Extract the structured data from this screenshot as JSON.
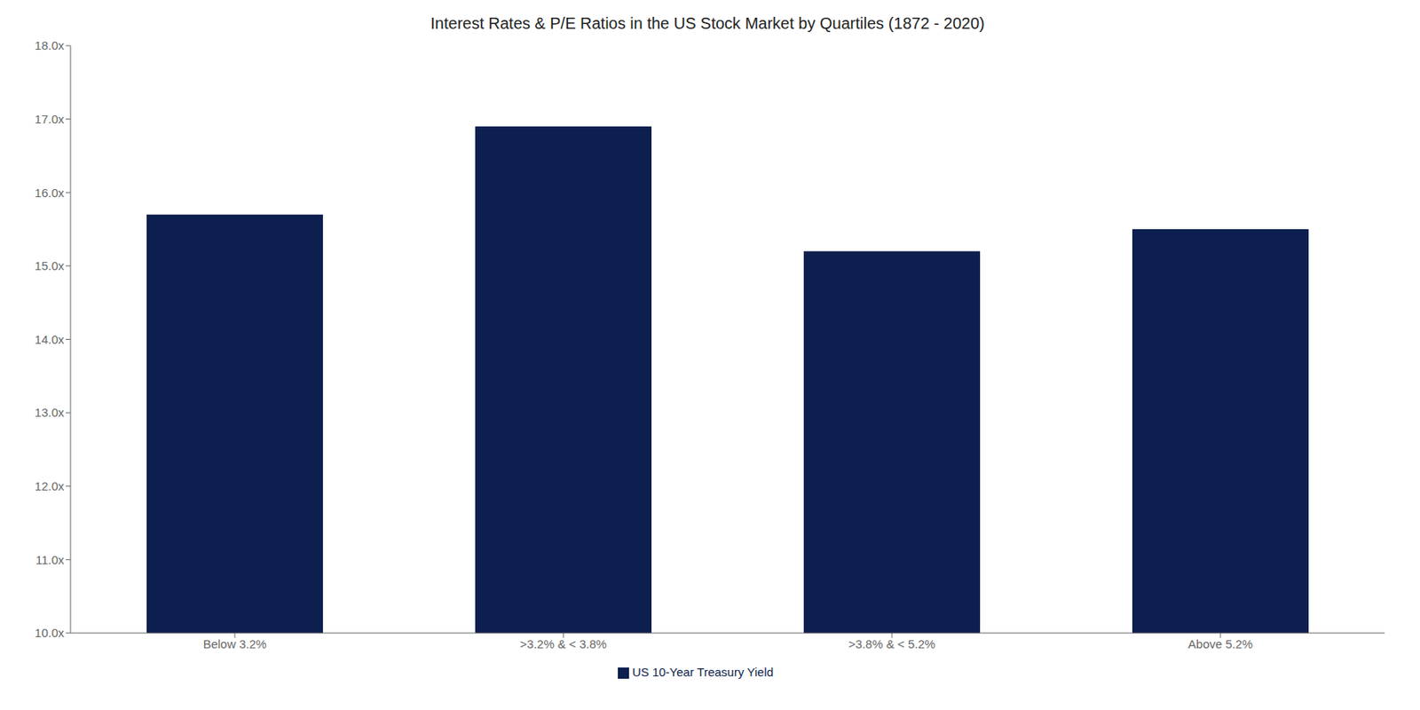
{
  "chart_data": {
    "type": "bar",
    "title": "Interest Rates & P/E Ratios in the US Stock Market by Quartiles (1872 - 2020)",
    "categories": [
      "Below 3.2%",
      ">3.2% & < 3.8%",
      ">3.8% & < 5.2%",
      "Above 5.2%"
    ],
    "series": [
      {
        "name": "US 10-Year Treasury Yield",
        "color": "#0d1f4e",
        "values": [
          15.7,
          16.9,
          15.2,
          15.5
        ]
      }
    ],
    "ylim": [
      10.0,
      18.0
    ],
    "yticks": [
      {
        "value": 10.0,
        "label": "10.0x"
      },
      {
        "value": 11.0,
        "label": "11.0x"
      },
      {
        "value": 12.0,
        "label": "12.0x"
      },
      {
        "value": 13.0,
        "label": "13.0x"
      },
      {
        "value": 14.0,
        "label": "14.0x"
      },
      {
        "value": 15.0,
        "label": "15.0x"
      },
      {
        "value": 16.0,
        "label": "16.0x"
      },
      {
        "value": 17.0,
        "label": "17.0x"
      },
      {
        "value": 18.0,
        "label": "18.0x"
      }
    ],
    "grid": false,
    "legend": "bottom"
  }
}
